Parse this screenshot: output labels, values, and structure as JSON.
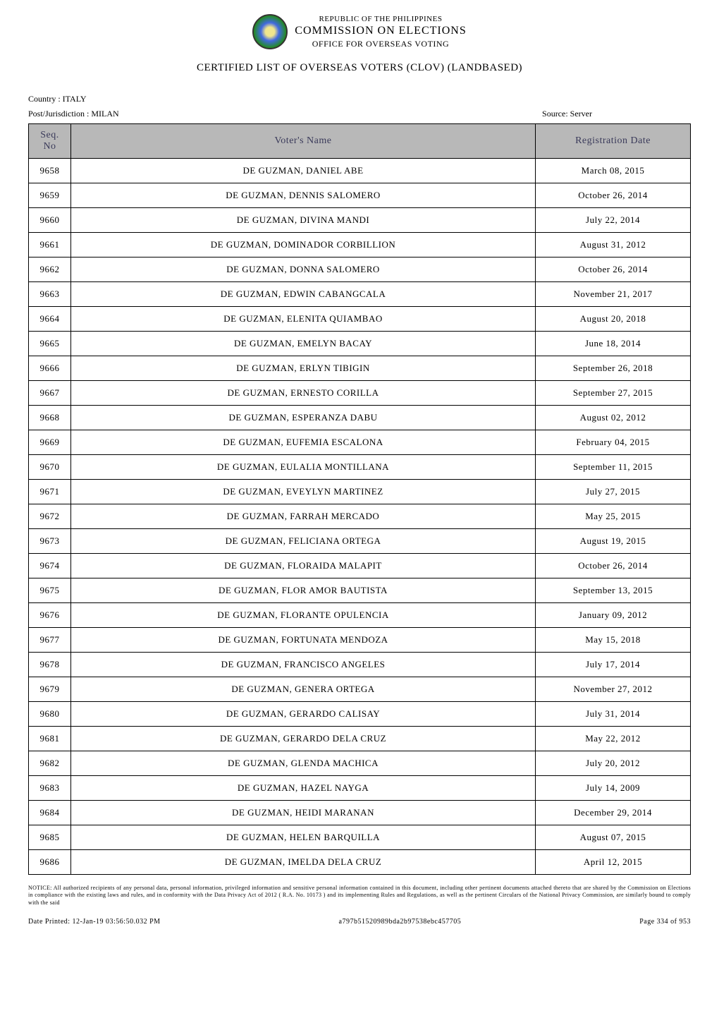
{
  "header": {
    "republic": "REPUBLIC OF THE PHILIPPINES",
    "commission": "COMMISSION ON ELECTIONS",
    "office": "OFFICE FOR OVERSEAS VOTING",
    "title": "CERTIFIED LIST OF OVERSEAS VOTERS (CLOV) (LANDBASED)"
  },
  "meta": {
    "country_label": "Country : ",
    "country_value": "ITALY",
    "post_label": "Post/Jurisdiction : ",
    "post_value": "MILAN",
    "source_label": "Source: ",
    "source_value": "Server"
  },
  "table": {
    "headers": {
      "seq": "Seq. No",
      "name": "Voter's Name",
      "date": "Registration Date"
    },
    "rows": [
      {
        "seq": "9658",
        "name": "DE GUZMAN, DANIEL ABE",
        "date": "March 08, 2015"
      },
      {
        "seq": "9659",
        "name": "DE GUZMAN, DENNIS SALOMERO",
        "date": "October 26, 2014"
      },
      {
        "seq": "9660",
        "name": "DE GUZMAN, DIVINA MANDI",
        "date": "July 22, 2014"
      },
      {
        "seq": "9661",
        "name": "DE GUZMAN, DOMINADOR CORBILLION",
        "date": "August 31, 2012"
      },
      {
        "seq": "9662",
        "name": "DE GUZMAN, DONNA SALOMERO",
        "date": "October 26, 2014"
      },
      {
        "seq": "9663",
        "name": "DE GUZMAN, EDWIN CABANGCALA",
        "date": "November 21, 2017"
      },
      {
        "seq": "9664",
        "name": "DE GUZMAN, ELENITA QUIAMBAO",
        "date": "August 20, 2018"
      },
      {
        "seq": "9665",
        "name": "DE GUZMAN, EMELYN BACAY",
        "date": "June 18, 2014"
      },
      {
        "seq": "9666",
        "name": "DE GUZMAN, ERLYN TIBIGIN",
        "date": "September 26, 2018"
      },
      {
        "seq": "9667",
        "name": "DE GUZMAN, ERNESTO CORILLA",
        "date": "September 27, 2015"
      },
      {
        "seq": "9668",
        "name": "DE GUZMAN, ESPERANZA DABU",
        "date": "August 02, 2012"
      },
      {
        "seq": "9669",
        "name": "DE GUZMAN, EUFEMIA ESCALONA",
        "date": "February 04, 2015"
      },
      {
        "seq": "9670",
        "name": "DE GUZMAN, EULALIA MONTILLANA",
        "date": "September 11, 2015"
      },
      {
        "seq": "9671",
        "name": "DE GUZMAN, EVEYLYN MARTINEZ",
        "date": "July 27, 2015"
      },
      {
        "seq": "9672",
        "name": "DE GUZMAN, FARRAH MERCADO",
        "date": "May 25, 2015"
      },
      {
        "seq": "9673",
        "name": "DE GUZMAN, FELICIANA ORTEGA",
        "date": "August 19, 2015"
      },
      {
        "seq": "9674",
        "name": "DE GUZMAN, FLORAIDA MALAPIT",
        "date": "October 26, 2014"
      },
      {
        "seq": "9675",
        "name": "DE GUZMAN, FLOR AMOR BAUTISTA",
        "date": "September 13, 2015"
      },
      {
        "seq": "9676",
        "name": "DE GUZMAN, FLORANTE OPULENCIA",
        "date": "January 09, 2012"
      },
      {
        "seq": "9677",
        "name": "DE GUZMAN, FORTUNATA MENDOZA",
        "date": "May 15, 2018"
      },
      {
        "seq": "9678",
        "name": "DE GUZMAN, FRANCISCO ANGELES",
        "date": "July 17, 2014"
      },
      {
        "seq": "9679",
        "name": "DE GUZMAN, GENERA ORTEGA",
        "date": "November 27, 2012"
      },
      {
        "seq": "9680",
        "name": "DE GUZMAN, GERARDO CALISAY",
        "date": "July 31, 2014"
      },
      {
        "seq": "9681",
        "name": "DE GUZMAN, GERARDO DELA CRUZ",
        "date": "May 22, 2012"
      },
      {
        "seq": "9682",
        "name": "DE GUZMAN, GLENDA MACHICA",
        "date": "July 20, 2012"
      },
      {
        "seq": "9683",
        "name": "DE GUZMAN, HAZEL NAYGA",
        "date": "July 14, 2009"
      },
      {
        "seq": "9684",
        "name": "DE GUZMAN, HEIDI MARANAN",
        "date": "December 29, 2014"
      },
      {
        "seq": "9685",
        "name": "DE GUZMAN, HELEN BARQUILLA",
        "date": "August 07, 2015"
      },
      {
        "seq": "9686",
        "name": "DE GUZMAN, IMELDA DELA CRUZ",
        "date": "April 12, 2015"
      }
    ]
  },
  "notice": "NOTICE: All authorized recipients of any personal data, personal information, privileged information and sensitive personal information contained in this document, including other pertinent documents attached thereto that are shared by the Commission on Elections in compliance with the existing laws and rules, and in conformity with the Data Privacy Act of 2012 ( R.A. No. 10173 ) and its implementing Rules and Regulations, as well as the pertinent Circulars of the National Privacy Commission, are similarly bound to comply with the said",
  "footer": {
    "date_printed": "Date Printed: 12-Jan-19 03:56:50.032 PM",
    "hash": "a797b51520989bda2b97538ebc457705",
    "page": "Page 334 of 953"
  },
  "styles": {
    "header_bg": "#b8b8b8",
    "header_text_color": "#3a3a5a",
    "border_color": "#000000",
    "body_bg": "#ffffff"
  }
}
